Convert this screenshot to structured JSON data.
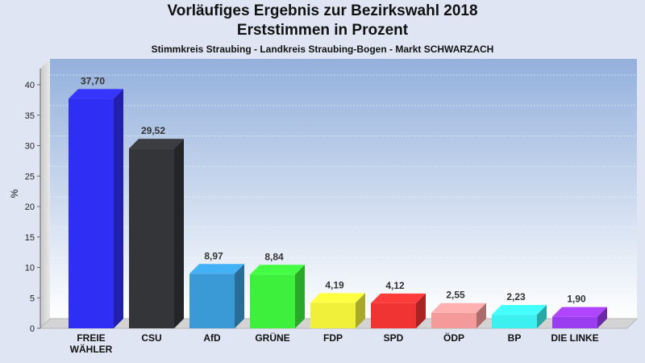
{
  "chart_data": {
    "type": "bar",
    "title": "Vorläufiges Ergebnis zur Bezirkswahl 2018",
    "subtitle": "Erststimmen in Prozent",
    "caption": "Stimmkreis Straubing - Landkreis Straubing-Bogen - Markt SCHWARZACH",
    "xlabel": "",
    "ylabel": "%",
    "ylim": [
      0,
      40
    ],
    "yticks": [
      0,
      5,
      10,
      15,
      20,
      25,
      30,
      35,
      40
    ],
    "grid": true,
    "categories": [
      [
        "FREIE",
        "WÄHLER"
      ],
      [
        "CSU"
      ],
      [
        "AfD"
      ],
      [
        "GRÜNE"
      ],
      [
        "FDP"
      ],
      [
        "SPD"
      ],
      [
        "ÖDP"
      ],
      [
        "BP"
      ],
      [
        "DIE LINKE"
      ]
    ],
    "values": [
      37.7,
      29.52,
      8.97,
      8.84,
      4.19,
      4.12,
      2.55,
      2.23,
      1.9
    ],
    "value_labels": [
      "37,70",
      "29,52",
      "8,97",
      "8,84",
      "4,19",
      "4,12",
      "2,55",
      "2,23",
      "1,90"
    ],
    "colors": [
      "#2e2ef5",
      "#333538",
      "#3a9ad6",
      "#3cf03c",
      "#f0f03a",
      "#f03434",
      "#f59a9a",
      "#3cf0f0",
      "#9a3cf0"
    ]
  }
}
